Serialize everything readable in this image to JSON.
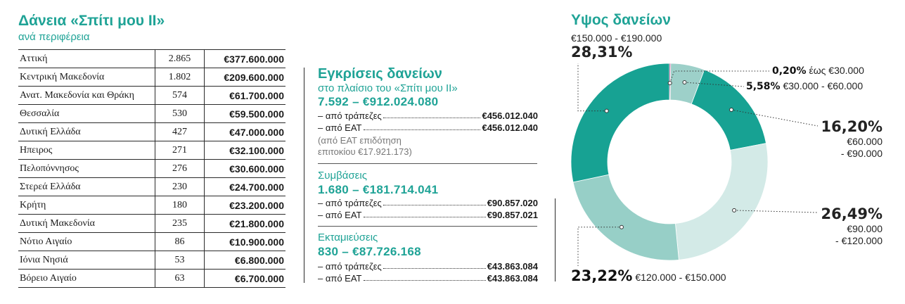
{
  "left": {
    "title": "Δάνεια «Σπίτι μου ΙΙ»",
    "subtitle": "ανά περιφέρεια",
    "rows": [
      {
        "region": "Αττική",
        "count": "2.865",
        "amount": "€377.600.000"
      },
      {
        "region": "Κεντρική Μακεδονία",
        "count": "1.802",
        "amount": "€209.600.000"
      },
      {
        "region": "Ανατ. Μακεδονία και Θράκη",
        "count": "574",
        "amount": "€61.700.000"
      },
      {
        "region": "Θεσσαλία",
        "count": "530",
        "amount": "€59.500.000"
      },
      {
        "region": "Δυτική Ελλάδα",
        "count": "427",
        "amount": "€47.000.000"
      },
      {
        "region": "Ηπειρος",
        "count": "271",
        "amount": "€32.100.000"
      },
      {
        "region": "Πελοπόννησος",
        "count": "276",
        "amount": "€30.600.000"
      },
      {
        "region": "Στερεά Ελλάδα",
        "count": "230",
        "amount": "€24.700.000"
      },
      {
        "region": "Κρήτη",
        "count": "180",
        "amount": "€23.200.000"
      },
      {
        "region": "Δυτική Μακεδονία",
        "count": "235",
        "amount": "€21.800.000"
      },
      {
        "region": "Νότιο Αιγαίο",
        "count": "86",
        "amount": "€10.900.000"
      },
      {
        "region": "Ιόνια Νησιά",
        "count": "53",
        "amount": "€6.800.000"
      },
      {
        "region": "Βόρειο Αιγαίο",
        "count": "63",
        "amount": "€6.700.000"
      }
    ]
  },
  "middle": {
    "title": "Εγκρίσεις δανείων",
    "subtitle": "στο πλαίσιο του «Σπίτι μου ΙΙ»",
    "approvals_total": "7.592 – €912.024.080",
    "approvals_banks_label": "– από τράπεζες",
    "approvals_banks_value": "€456.012.040",
    "approvals_eat_label": "– από ΕΑΤ",
    "approvals_eat_value": "€456.012.040",
    "note_line1": "(από ΕΑΤ επιδότηση",
    "note_line2": "επιτοκίου €17.921.173)",
    "contracts_title": "Συμβάσεις",
    "contracts_total": "1.680 – €181.714.041",
    "contracts_banks_label": "– από τράπεζες",
    "contracts_banks_value": "€90.857.020",
    "contracts_eat_label": "– από ΕΑΤ",
    "contracts_eat_value": "€90.857.021",
    "disb_title": "Εκταμιεύσεις",
    "disb_total": "830 – €87.726.168",
    "disb_banks_label": "– από τράπεζες",
    "disb_banks_value": "€43.863.084",
    "disb_eat_label": "– από ΕΑΤ",
    "disb_eat_value": "€43.863.084"
  },
  "chart_data": {
    "type": "pie",
    "title": "Υψος δανείων",
    "slices": [
      {
        "pct_label": "0,20%",
        "range_label": "έως €30.000",
        "value": 0.2,
        "color": "#a3176f"
      },
      {
        "pct_label": "5,58%",
        "range_label": "€30.000 - €60.000",
        "value": 5.58,
        "color": "#9dd0c9"
      },
      {
        "pct_label": "16,20%",
        "range_label_1": "€60.000",
        "range_label_2": "- €90.000",
        "value": 16.2,
        "color": "#17a293"
      },
      {
        "pct_label": "26,49%",
        "range_label_1": "€90.000",
        "range_label_2": "- €120.000",
        "value": 26.49,
        "color": "#d3eae7"
      },
      {
        "pct_label": "23,22%",
        "range_label": "€120.000 - €150.000",
        "value": 23.22,
        "color": "#97cfc7"
      },
      {
        "pct_label": "28,31%",
        "range_label": "€150.000 - €190.000",
        "value": 28.31,
        "color": "#17a293"
      }
    ]
  }
}
